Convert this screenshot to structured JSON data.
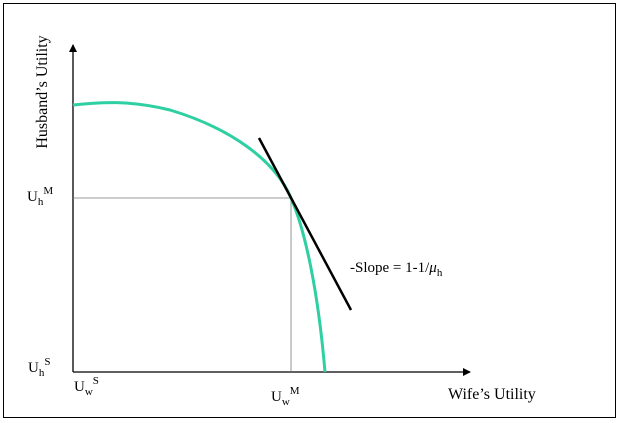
{
  "axes": {
    "y_label": "Husband’s Utility",
    "x_label": "Wife’s Utility"
  },
  "points": {
    "uhm": {
      "base": "U",
      "sub": "h",
      "sup": "M"
    },
    "uhs": {
      "base": "U",
      "sub": "h",
      "sup": "S"
    },
    "uws": {
      "base": "U",
      "sub": "w",
      "sup": "S"
    },
    "uwm": {
      "base": "U",
      "sub": "w",
      "sup": "M"
    }
  },
  "annotation": {
    "prefix": "-Slope = 1-1/",
    "mu": "μ",
    "sub": "h"
  },
  "colors": {
    "frontier": "#2ecfa2",
    "tangent": "#000000",
    "guide": "#7a7a7a"
  }
}
